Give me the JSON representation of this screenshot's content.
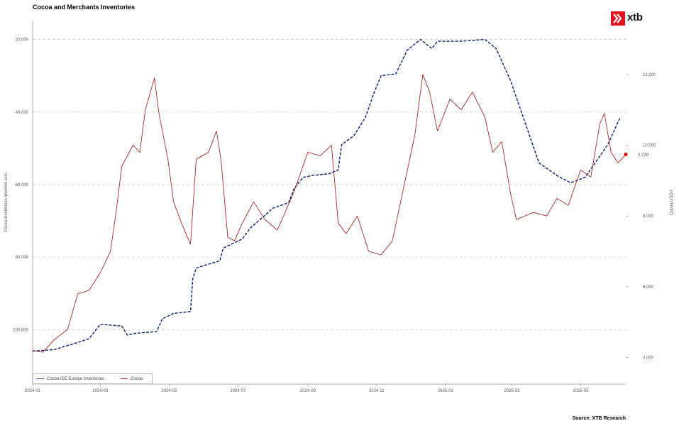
{
  "title": "Cocoa and Merchants Inventories",
  "source": "Source: XTB Research",
  "brand": {
    "name": "xtb",
    "color": "#e0141e"
  },
  "last_value_label": "9,739",
  "colors": {
    "inventories": "#0a1a6e",
    "cocoa": "#a01010",
    "last_dot": "#cc0000",
    "grid": "#cccccc"
  },
  "chart_data": {
    "type": "line",
    "x_type": "date",
    "xlim": [
      "2024-01-01",
      "2025-06-10"
    ],
    "x_ticks": [
      "2024-01",
      "2024-03",
      "2024-05",
      "2024-07",
      "2024-09",
      "2024-11",
      "2025-01",
      "2025-03",
      "2025-05"
    ],
    "left_axis": {
      "label": "Cocoa inventories inverted axis",
      "inverted": true,
      "ylim": [
        15000,
        115000
      ],
      "ticks": [
        "20,000",
        "40,000",
        "60,000",
        "80,000",
        "100,000"
      ]
    },
    "right_axis": {
      "label": "Cocoa USD/t",
      "ylim": [
        3250,
        13500
      ],
      "ticks": [
        "4,000",
        "6,000",
        "8,000",
        "10,000",
        "12,000"
      ]
    },
    "grid": "horizontal dashed",
    "legend": {
      "placement": "bottom-left",
      "entries": [
        "Cocoa ICE Europe Inventories",
        "Cocoa"
      ]
    },
    "series": [
      {
        "name": "Cocoa ICE Europe Inventories",
        "axis": "left",
        "style": "dashed",
        "points": [
          [
            "2024-01-01",
            105900
          ],
          [
            "2024-01-20",
            105500
          ],
          [
            "2024-02-05",
            104000
          ],
          [
            "2024-02-20",
            102500
          ],
          [
            "2024-03-01",
            98500
          ],
          [
            "2024-03-20",
            99000
          ],
          [
            "2024-03-25",
            101500
          ],
          [
            "2024-04-01",
            101000
          ],
          [
            "2024-04-20",
            100500
          ],
          [
            "2024-04-25",
            97000
          ],
          [
            "2024-05-05",
            95500
          ],
          [
            "2024-05-20",
            95000
          ],
          [
            "2024-05-22",
            86000
          ],
          [
            "2024-05-25",
            83000
          ],
          [
            "2024-06-15",
            81000
          ],
          [
            "2024-06-18",
            77500
          ],
          [
            "2024-07-05",
            75000
          ],
          [
            "2024-07-12",
            72000
          ],
          [
            "2024-07-25",
            68500
          ],
          [
            "2024-08-01",
            66500
          ],
          [
            "2024-08-15",
            65000
          ],
          [
            "2024-08-20",
            61000
          ],
          [
            "2024-08-28",
            58000
          ],
          [
            "2024-09-05",
            57500
          ],
          [
            "2024-09-20",
            57000
          ],
          [
            "2024-09-28",
            56000
          ],
          [
            "2024-10-01",
            49000
          ],
          [
            "2024-10-12",
            46500
          ],
          [
            "2024-10-22",
            41500
          ],
          [
            "2024-10-30",
            34500
          ],
          [
            "2024-11-05",
            30000
          ],
          [
            "2024-11-18",
            29500
          ],
          [
            "2024-11-28",
            23000
          ],
          [
            "2024-12-10",
            20000
          ],
          [
            "2024-12-20",
            22500
          ],
          [
            "2024-12-25",
            20500
          ],
          [
            "2025-01-15",
            20500
          ],
          [
            "2025-02-05",
            20000
          ],
          [
            "2025-02-15",
            22500
          ],
          [
            "2025-02-28",
            31500
          ],
          [
            "2025-03-15",
            45000
          ],
          [
            "2025-03-25",
            54000
          ],
          [
            "2025-04-10",
            57500
          ],
          [
            "2025-04-22",
            59500
          ],
          [
            "2025-05-05",
            58000
          ],
          [
            "2025-05-25",
            49000
          ],
          [
            "2025-06-05",
            41500
          ]
        ]
      },
      {
        "name": "Cocoa",
        "axis": "right",
        "style": "solid",
        "points": [
          [
            "2024-01-01",
            4200
          ],
          [
            "2024-01-10",
            4150
          ],
          [
            "2024-01-20",
            4500
          ],
          [
            "2024-02-01",
            4800
          ],
          [
            "2024-02-10",
            5800
          ],
          [
            "2024-02-20",
            5900
          ],
          [
            "2024-03-01",
            6400
          ],
          [
            "2024-03-10",
            7000
          ],
          [
            "2024-03-15",
            8100
          ],
          [
            "2024-03-20",
            9400
          ],
          [
            "2024-03-30",
            10000
          ],
          [
            "2024-04-05",
            9800
          ],
          [
            "2024-04-10",
            11000
          ],
          [
            "2024-04-18",
            11900
          ],
          [
            "2024-04-22",
            10900
          ],
          [
            "2024-04-30",
            9600
          ],
          [
            "2024-05-05",
            8400
          ],
          [
            "2024-05-12",
            7800
          ],
          [
            "2024-05-20",
            7200
          ],
          [
            "2024-05-25",
            9600
          ],
          [
            "2024-06-05",
            9800
          ],
          [
            "2024-06-12",
            10400
          ],
          [
            "2024-06-16",
            9600
          ],
          [
            "2024-06-22",
            7400
          ],
          [
            "2024-06-28",
            7300
          ],
          [
            "2024-07-05",
            7800
          ],
          [
            "2024-07-15",
            8400
          ],
          [
            "2024-07-25",
            7900
          ],
          [
            "2024-08-05",
            7600
          ],
          [
            "2024-08-20",
            8700
          ],
          [
            "2024-09-01",
            9800
          ],
          [
            "2024-09-12",
            9700
          ],
          [
            "2024-09-22",
            10000
          ],
          [
            "2024-09-28",
            7800
          ],
          [
            "2024-10-05",
            7500
          ],
          [
            "2024-10-15",
            8000
          ],
          [
            "2024-10-25",
            7000
          ],
          [
            "2024-11-05",
            6900
          ],
          [
            "2024-11-15",
            7300
          ],
          [
            "2024-11-25",
            8800
          ],
          [
            "2024-12-05",
            10300
          ],
          [
            "2024-12-12",
            12000
          ],
          [
            "2024-12-18",
            11500
          ],
          [
            "2024-12-25",
            10400
          ],
          [
            "2025-01-05",
            11300
          ],
          [
            "2025-01-15",
            11000
          ],
          [
            "2025-01-25",
            11500
          ],
          [
            "2025-02-05",
            10800
          ],
          [
            "2025-02-12",
            9800
          ],
          [
            "2025-02-20",
            10100
          ],
          [
            "2025-02-28",
            8600
          ],
          [
            "2025-03-05",
            7900
          ],
          [
            "2025-03-20",
            8100
          ],
          [
            "2025-04-01",
            8000
          ],
          [
            "2025-04-10",
            8500
          ],
          [
            "2025-04-20",
            8300
          ],
          [
            "2025-05-01",
            9300
          ],
          [
            "2025-05-10",
            9100
          ],
          [
            "2025-05-18",
            10600
          ],
          [
            "2025-05-22",
            10900
          ],
          [
            "2025-05-28",
            9800
          ],
          [
            "2025-06-03",
            9500
          ],
          [
            "2025-06-10",
            9739
          ]
        ]
      }
    ]
  }
}
